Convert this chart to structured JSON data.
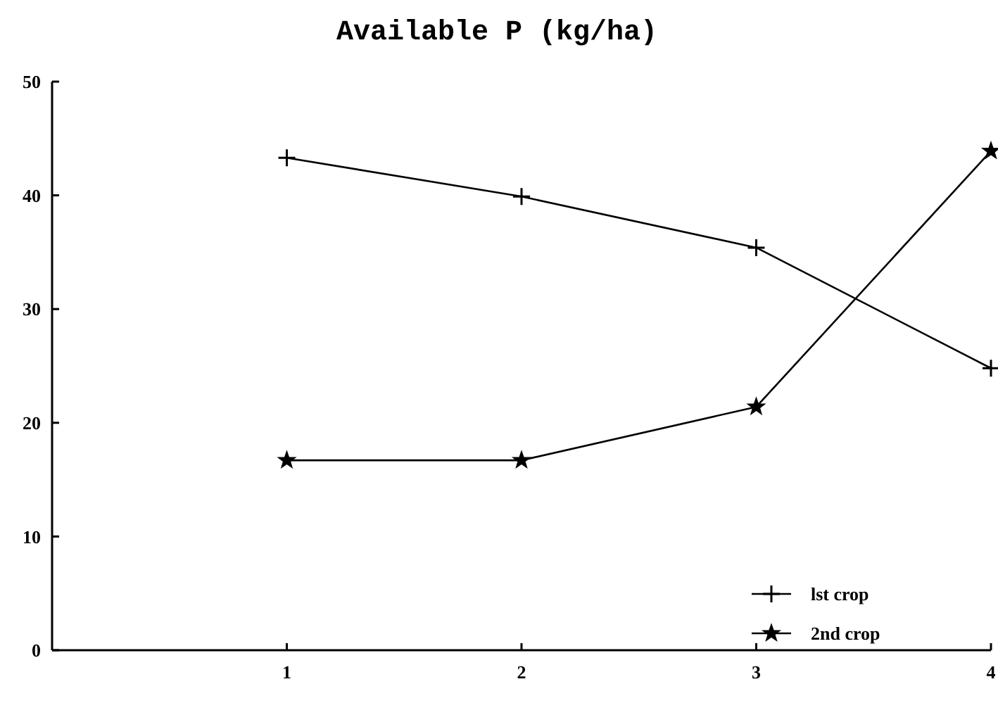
{
  "chart_data": {
    "type": "line",
    "title": "Available P (kg/ha)",
    "x": [
      1,
      2,
      3,
      4
    ],
    "series": [
      {
        "name": "lst crop",
        "color": "#000000",
        "marker": "cross",
        "values": [
          43.3,
          39.9,
          35.4,
          24.8
        ]
      },
      {
        "name": "2nd crop",
        "color": "#000000",
        "marker": "star",
        "values": [
          16.7,
          16.7,
          21.4,
          43.9
        ]
      }
    ],
    "xlim": [
      0,
      4
    ],
    "xticks": [
      1,
      2,
      3,
      4
    ],
    "ylim": [
      0,
      50
    ],
    "yticks": [
      0,
      10,
      20,
      30,
      40,
      50
    ],
    "grid": false,
    "legend": "bottom right",
    "line_style": "solid"
  }
}
